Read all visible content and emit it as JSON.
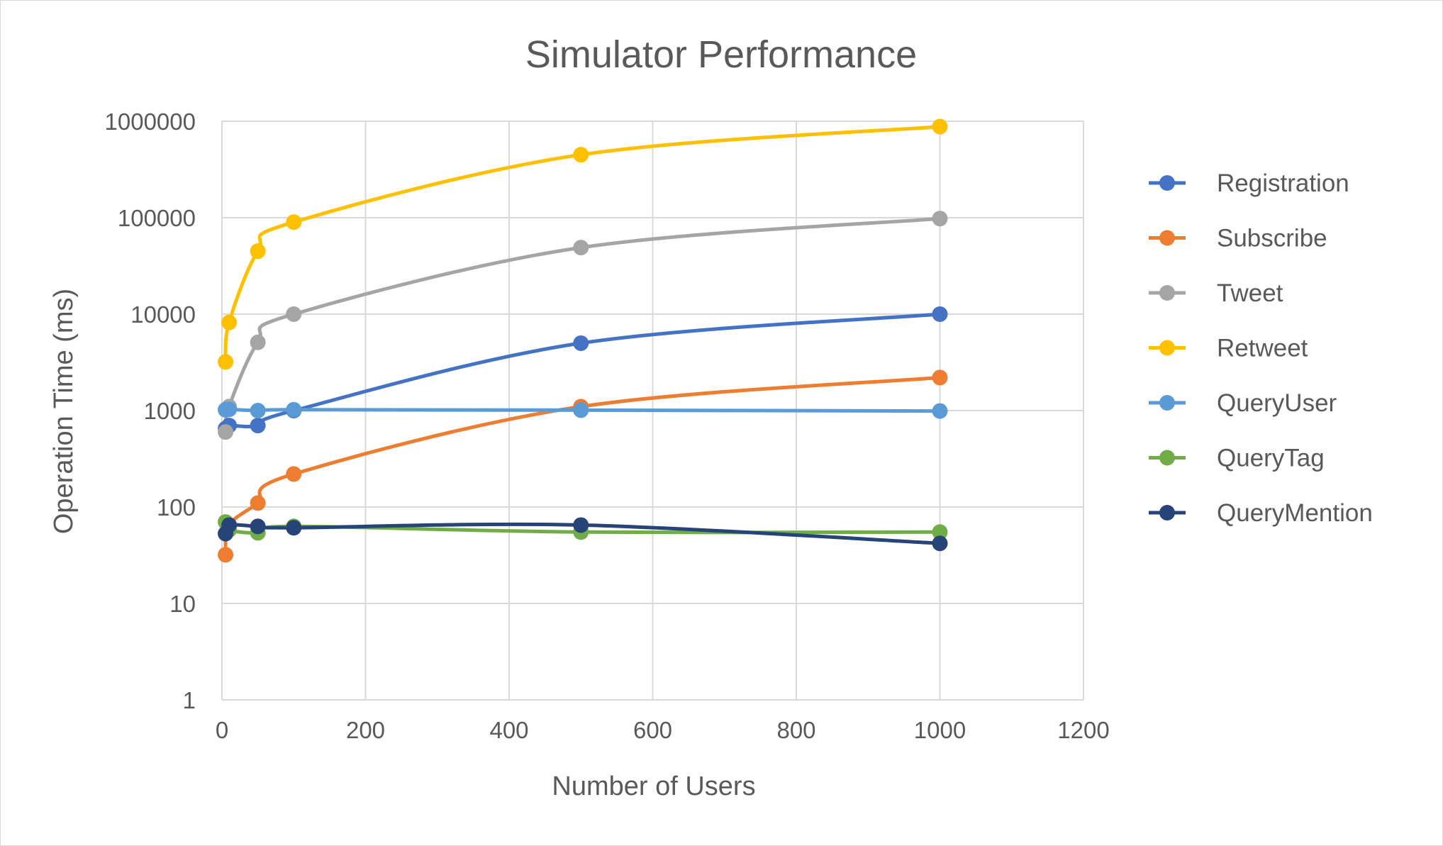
{
  "chart_data": {
    "type": "line",
    "title": "Simulator Performance",
    "xlabel": "Number of Users",
    "ylabel": "Operation Time (ms)",
    "x_scale": "linear",
    "y_scale": "log",
    "xlim": [
      0,
      1200
    ],
    "ylim": [
      1,
      1000000
    ],
    "x_ticks": [
      "0",
      "200",
      "400",
      "600",
      "800",
      "1000",
      "1200"
    ],
    "y_ticks": [
      "1",
      "10",
      "100",
      "1000",
      "10000",
      "100000",
      "1000000"
    ],
    "grid": true,
    "smooth": true,
    "legend_position": "right",
    "x": [
      5,
      10,
      50,
      100,
      500,
      1000
    ],
    "series": [
      {
        "name": "Registration",
        "color": "#4472C4",
        "values": [
          650,
          700,
          700,
          1000,
          5000,
          10000
        ]
      },
      {
        "name": "Subscribe",
        "color": "#ED7D31",
        "values": [
          32,
          65,
          110,
          220,
          1100,
          2200
        ]
      },
      {
        "name": "Tweet",
        "color": "#A5A5A5",
        "values": [
          600,
          1100,
          5100,
          10000,
          49000,
          98000
        ]
      },
      {
        "name": "Retweet",
        "color": "#FFC000",
        "values": [
          3200,
          8200,
          45000,
          90000,
          450000,
          880000
        ]
      },
      {
        "name": "QueryUser",
        "color": "#5B9BD5",
        "values": [
          1020,
          1030,
          1000,
          1020,
          1010,
          990
        ]
      },
      {
        "name": "QueryTag",
        "color": "#70AD47",
        "values": [
          70,
          58,
          54,
          63,
          55,
          55
        ]
      },
      {
        "name": "QueryMention",
        "color": "#264478",
        "values": [
          53,
          65,
          63,
          61,
          65,
          42
        ]
      }
    ]
  }
}
